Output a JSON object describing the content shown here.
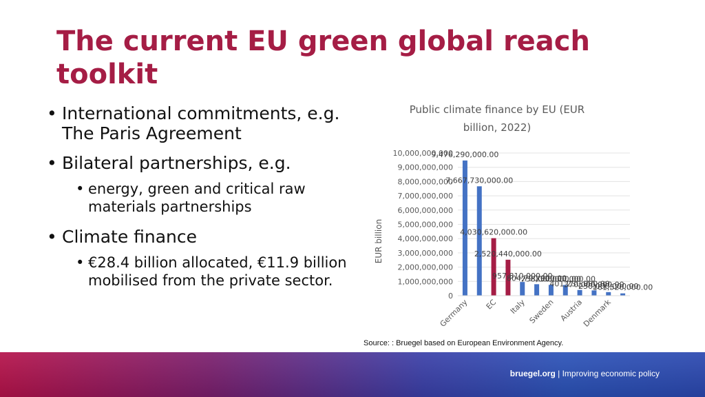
{
  "slide": {
    "title": "The current EU green global reach toolkit",
    "bullets": [
      {
        "text": "International commitments, e.g. The Paris Agreement"
      },
      {
        "text": "Bilateral partnerships, e.g.",
        "sub": [
          "energy, green and critical raw materials partnerships"
        ]
      },
      {
        "text": "Climate finance",
        "sub": [
          "€28.4 billion allocated, €11.9 billion mobilised from the private sector."
        ]
      }
    ],
    "source": "Source: : Bruegel based on European Environment Agency."
  },
  "footer": {
    "brand": "bruegel.org",
    "separator": "|",
    "tagline": "Improving economic policy"
  },
  "colors": {
    "title": "#a51d45",
    "bar_blue": "#4472c4",
    "bar_red": "#a51d45"
  },
  "chart_data": {
    "type": "bar",
    "title": "Public climate finance by EU (EUR billion, 2022)",
    "ylabel": "EUR billion",
    "xlabel": "",
    "ylim": [
      0,
      10000000000
    ],
    "yticks": [
      0,
      1000000000,
      2000000000,
      3000000000,
      4000000000,
      5000000000,
      6000000000,
      7000000000,
      8000000000,
      9000000000,
      10000000000
    ],
    "ytick_labels": [
      "0",
      "1,000,000,000",
      "2,000,000,000",
      "3,000,000,000",
      "4,000,000,000",
      "5,000,000,000",
      "6,000,000,000",
      "7,000,000,000",
      "8,000,000,000",
      "9,000,000,000",
      "10,000,000,000"
    ],
    "x_labels_shown": [
      "Germany",
      "",
      "EC",
      "",
      "Italy",
      "",
      "Sweden",
      "",
      "Austria",
      "",
      "Denmark",
      ""
    ],
    "values": [
      9476290000,
      7667730000,
      4030620000,
      2520440000,
      957810000,
      804790000,
      758000000,
      750000000,
      401230000,
      370000000,
      250000000,
      161520000
    ],
    "data_labels": [
      "9,476,290,000.00",
      "7,667,730,000.00",
      "4,030,620,000.00",
      "2,520,440,000.00",
      "957,810,000.00",
      "804,790,000.00",
      "758,000,000.00",
      "750,000,000.00",
      "401,230,000.00",
      "370,000,000.00",
      "250,000,000.00",
      "161,520,000.00"
    ],
    "bar_colors": [
      "#4472c4",
      "#4472c4",
      "#a51d45",
      "#a51d45",
      "#4472c4",
      "#4472c4",
      "#4472c4",
      "#4472c4",
      "#4472c4",
      "#4472c4",
      "#4472c4",
      "#4472c4"
    ],
    "grid": true,
    "legend": "none"
  }
}
